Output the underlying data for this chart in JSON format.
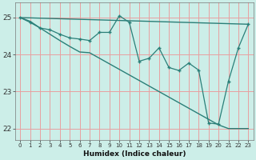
{
  "xlabel": "Humidex (Indice chaleur)",
  "background_color": "#cceee8",
  "grid_color": "#e8a0a0",
  "line_color": "#2a7f78",
  "line1_x": [
    0,
    23
  ],
  "line1_y": [
    25.0,
    24.82
  ],
  "line2_x": [
    0,
    1,
    2,
    3,
    4,
    5,
    6,
    7,
    8,
    9,
    10,
    11,
    12,
    13,
    14,
    15,
    16,
    17,
    18,
    19,
    20,
    21,
    22,
    23
  ],
  "line2_y": [
    25.0,
    24.87,
    24.72,
    24.67,
    24.55,
    24.45,
    24.42,
    24.38,
    24.6,
    24.6,
    25.05,
    24.87,
    23.82,
    23.9,
    24.18,
    23.65,
    23.57,
    23.77,
    23.58,
    22.15,
    22.12,
    23.28,
    24.18,
    24.82
  ],
  "line3_x": [
    0,
    1,
    2,
    3,
    4,
    5,
    6,
    7,
    8,
    9,
    10,
    11,
    12,
    13,
    14,
    15,
    16,
    17,
    18,
    19,
    20,
    21,
    22,
    23
  ],
  "line3_y": [
    25.0,
    24.9,
    24.72,
    24.55,
    24.38,
    24.22,
    24.07,
    24.05,
    23.9,
    23.75,
    23.6,
    23.45,
    23.3,
    23.15,
    23.0,
    22.85,
    22.7,
    22.55,
    22.4,
    22.25,
    22.1,
    22.0,
    22.0,
    22.0
  ],
  "ylim": [
    21.7,
    25.4
  ],
  "yticks": [
    22,
    23,
    24,
    25
  ],
  "xticks": [
    0,
    1,
    2,
    3,
    4,
    5,
    6,
    7,
    8,
    9,
    10,
    11,
    12,
    13,
    14,
    15,
    16,
    17,
    18,
    19,
    20,
    21,
    22,
    23
  ]
}
